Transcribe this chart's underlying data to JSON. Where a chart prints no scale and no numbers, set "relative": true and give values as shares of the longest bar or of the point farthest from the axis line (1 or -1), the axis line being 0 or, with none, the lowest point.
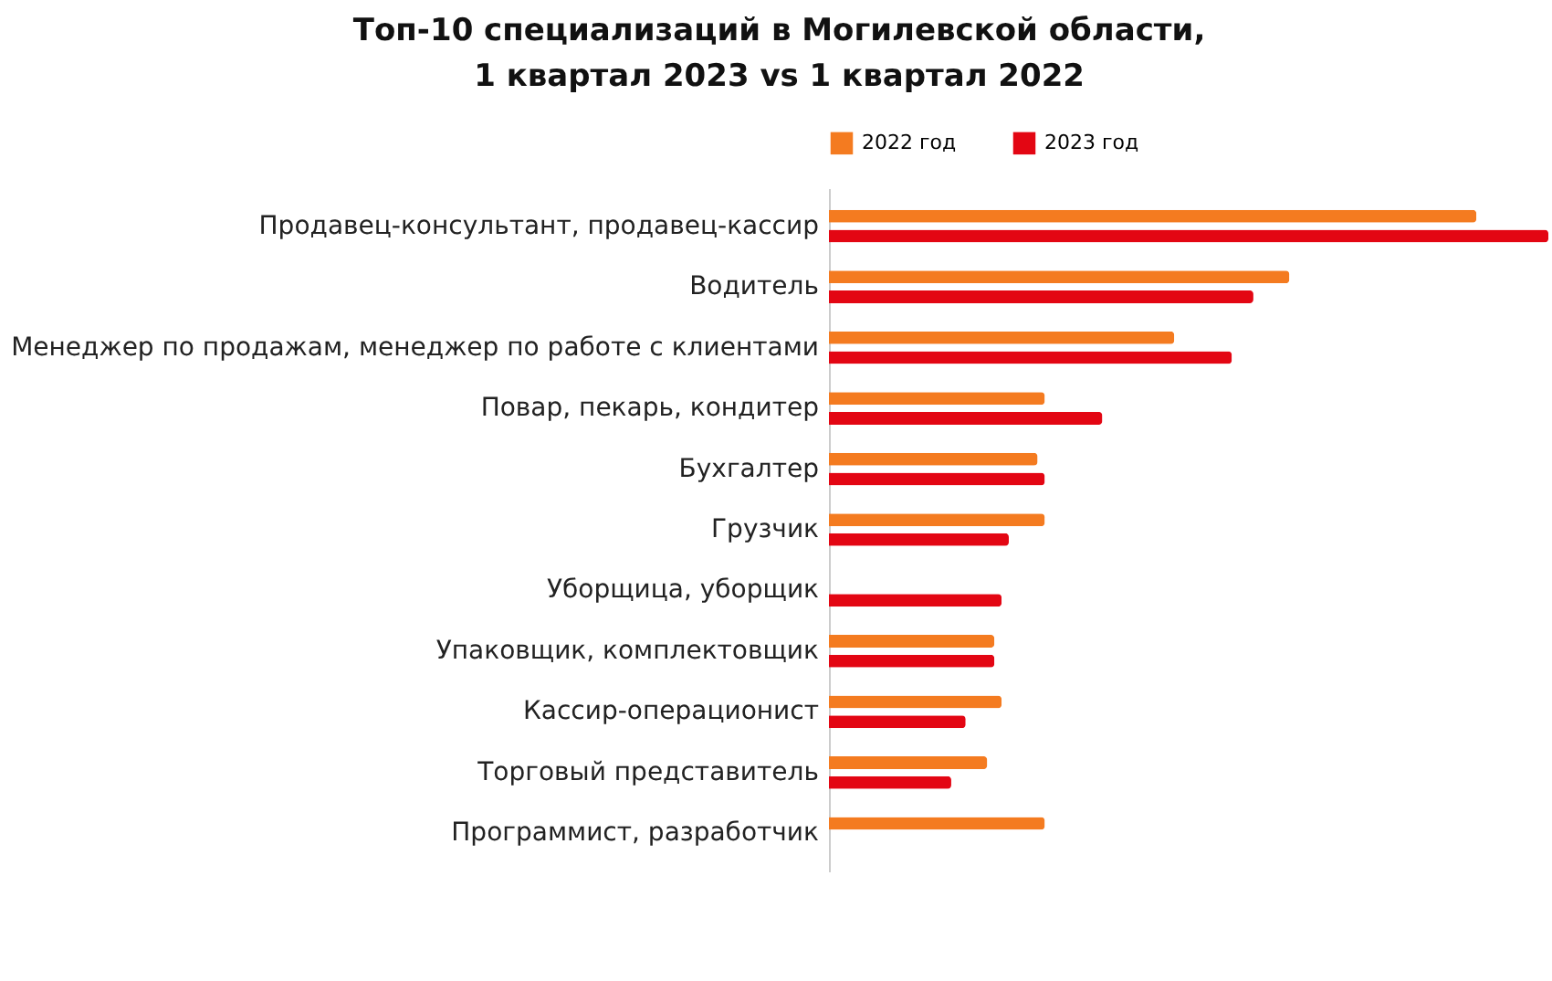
{
  "chart_data": {
    "type": "bar",
    "orientation": "horizontal",
    "relative": true,
    "title": "Топ-10 специализаций в Могилевской области,\n1 квартал 2023 vs 1 квартал 2022",
    "categories": [
      "Продавец-консультант, продавец-кассир",
      "Водитель",
      "Менеджер по продажам, менеджер по работе с клиентами",
      "Повар, пекарь, кондитер",
      "Бухгалтер",
      "Грузчик",
      "Уборщица, уборщик",
      "Упаковщик, комплектовщик",
      "Кассир-операционист",
      "Торговый представитель",
      "Программист, разработчик"
    ],
    "series": [
      {
        "name": "2022 год",
        "color": "#f47b20",
        "values": [
          0.9,
          0.64,
          0.48,
          0.3,
          0.29,
          0.3,
          null,
          0.23,
          0.24,
          0.22,
          0.3
        ]
      },
      {
        "name": "2023 год",
        "color": "#e30613",
        "values": [
          1,
          0.59,
          0.56,
          0.38,
          0.3,
          0.25,
          0.24,
          0.23,
          0.19,
          0.17,
          null
        ]
      }
    ],
    "legend": "top",
    "grid": false
  }
}
